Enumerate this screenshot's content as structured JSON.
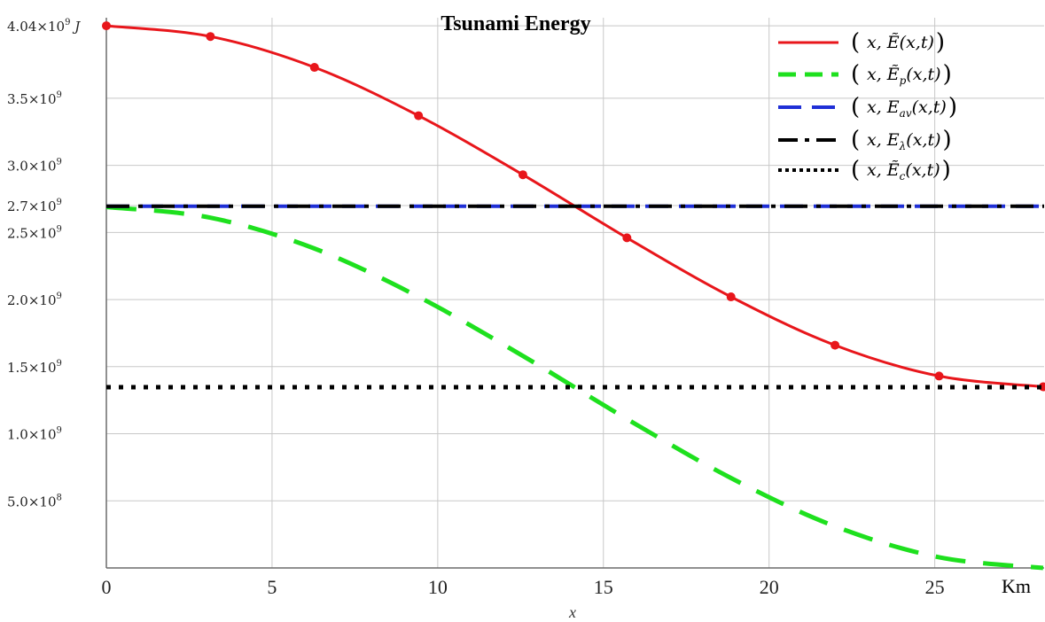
{
  "chart_data": {
    "type": "line",
    "title": "Tsunami Energy",
    "xlabel": "x",
    "x_unit": "Km",
    "xlim": [
      0,
      28.3
    ],
    "ylim": [
      0,
      4100000000.0
    ],
    "grid": true,
    "legend_position": "top-right",
    "x_ticks": [
      0,
      5,
      10,
      15,
      20,
      25
    ],
    "x_tick_labels": [
      "0",
      "5",
      "10",
      "15",
      "20",
      "25"
    ],
    "y_ticks": [
      {
        "value": 500000000.0,
        "mantissa": "5.0",
        "exp": "8"
      },
      {
        "value": 1000000000.0,
        "mantissa": "1.0",
        "exp": "9"
      },
      {
        "value": 1500000000.0,
        "mantissa": "1.5",
        "exp": "9"
      },
      {
        "value": 2000000000.0,
        "mantissa": "2.0",
        "exp": "9"
      },
      {
        "value": 2500000000.0,
        "mantissa": "2.5",
        "exp": "9"
      },
      {
        "value": 2700000000.0,
        "mantissa": "2.7",
        "exp": "9"
      },
      {
        "value": 3000000000.0,
        "mantissa": "3.0",
        "exp": "9"
      },
      {
        "value": 3500000000.0,
        "mantissa": "3.5",
        "exp": "9"
      },
      {
        "value": 4040000000.0,
        "mantissa": "4.04",
        "exp": "9",
        "unit": "J"
      }
    ],
    "series": [
      {
        "name": "(x, Ẽ(x,t))",
        "color": "#e8161b",
        "style": "solid-markers",
        "points": [
          [
            0,
            4040000000.0
          ],
          [
            3.14,
            3960000000.0
          ],
          [
            6.28,
            3730000000.0
          ],
          [
            9.42,
            3370000000.0
          ],
          [
            12.57,
            2930000000.0
          ],
          [
            15.71,
            2460000000.0
          ],
          [
            18.85,
            2020000000.0
          ],
          [
            21.99,
            1660000000.0
          ],
          [
            25.13,
            1430000000.0
          ],
          [
            28.27,
            1350000000.0
          ]
        ]
      },
      {
        "name": "(x, Ẽp(x,t))",
        "color": "#1ee01e",
        "style": "dash",
        "points": [
          [
            0,
            2690000000.0
          ],
          [
            3.14,
            2610000000.0
          ],
          [
            6.28,
            2380000000.0
          ],
          [
            9.42,
            2020000000.0
          ],
          [
            12.57,
            1580000000.0
          ],
          [
            15.71,
            1110000000.0
          ],
          [
            18.85,
            670000000.0
          ],
          [
            21.99,
            310000000.0
          ],
          [
            25.13,
            80000000.0
          ],
          [
            28.27,
            0
          ]
        ]
      },
      {
        "name": "(x, Eav(x,t))",
        "color": "#1f2fd6",
        "style": "dash-long",
        "points": [
          [
            0,
            2695000000.0
          ],
          [
            28.3,
            2695000000.0
          ]
        ]
      },
      {
        "name": "(x, Eλ(x,t))",
        "color": "#000000",
        "style": "dash-dot",
        "points": [
          [
            0,
            2695000000.0
          ],
          [
            28.3,
            2695000000.0
          ]
        ]
      },
      {
        "name": "(x, Ẽc(x,t))",
        "color": "#000000",
        "style": "dot",
        "points": [
          [
            0,
            1347000000.0
          ],
          [
            28.3,
            1347000000.0
          ]
        ]
      }
    ],
    "legend": [
      {
        "func": "Ẽ",
        "sub": ""
      },
      {
        "func": "Ẽ",
        "sub": "p"
      },
      {
        "func": "E",
        "sub": "av"
      },
      {
        "func": "E",
        "sub": "λ"
      },
      {
        "func": "Ẽ",
        "sub": "c"
      }
    ],
    "legend_args": "(x,t)"
  }
}
